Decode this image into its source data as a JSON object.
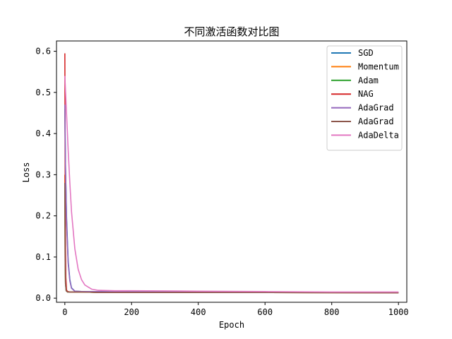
{
  "chart_data": {
    "type": "line",
    "title": "不同激活函数对比图",
    "xlabel": "Epoch",
    "ylabel": "Loss",
    "xlim": [
      -25,
      1025
    ],
    "ylim": [
      -0.01,
      0.625
    ],
    "xticks": [
      0,
      200,
      400,
      600,
      800,
      1000
    ],
    "yticks": [
      0.0,
      0.1,
      0.2,
      0.3,
      0.4,
      0.5,
      0.6
    ],
    "legend_position": "top-right",
    "grid": false,
    "series": [
      {
        "name": "SGD",
        "color": "#1f77b4",
        "x": [
          0,
          2,
          5,
          10,
          15,
          20,
          30,
          50,
          100,
          200,
          400,
          600,
          800,
          1000
        ],
        "y": [
          0.46,
          0.32,
          0.2,
          0.09,
          0.045,
          0.025,
          0.017,
          0.016,
          0.016,
          0.015,
          0.015,
          0.014,
          0.014,
          0.014
        ]
      },
      {
        "name": "Momentum",
        "color": "#ff7f0e",
        "x": [
          0,
          1,
          2,
          4,
          8,
          15,
          50,
          100,
          400,
          1000
        ],
        "y": [
          0.3,
          0.1,
          0.04,
          0.02,
          0.016,
          0.015,
          0.015,
          0.014,
          0.014,
          0.013
        ]
      },
      {
        "name": "Adam",
        "color": "#2ca02c",
        "x": [
          0,
          1,
          2,
          4,
          8,
          15,
          50,
          100,
          400,
          1000
        ],
        "y": [
          0.27,
          0.09,
          0.035,
          0.018,
          0.015,
          0.015,
          0.015,
          0.014,
          0.014,
          0.013
        ]
      },
      {
        "name": "NAG",
        "color": "#d62728",
        "x": [
          0,
          1,
          2,
          3,
          5,
          8,
          15,
          50,
          100,
          400,
          1000
        ],
        "y": [
          0.595,
          0.3,
          0.12,
          0.05,
          0.02,
          0.016,
          0.015,
          0.015,
          0.014,
          0.014,
          0.013
        ]
      },
      {
        "name": "AdaGrad",
        "color": "#9467bd",
        "x": [
          0,
          2,
          5,
          10,
          15,
          20,
          30,
          50,
          100,
          200,
          400,
          600,
          800,
          1000
        ],
        "y": [
          0.47,
          0.32,
          0.19,
          0.085,
          0.042,
          0.024,
          0.017,
          0.016,
          0.016,
          0.015,
          0.015,
          0.014,
          0.014,
          0.014
        ]
      },
      {
        "name": "AdaGrad",
        "color": "#8c564b",
        "x": [
          0,
          1,
          2,
          4,
          8,
          15,
          50,
          100,
          400,
          1000
        ],
        "y": [
          0.28,
          0.09,
          0.035,
          0.018,
          0.015,
          0.015,
          0.015,
          0.014,
          0.014,
          0.013
        ]
      },
      {
        "name": "AdaDelta",
        "color": "#e377c2",
        "x": [
          0,
          5,
          10,
          15,
          20,
          30,
          40,
          50,
          60,
          80,
          100,
          150,
          200,
          400,
          600,
          800,
          1000
        ],
        "y": [
          0.54,
          0.45,
          0.36,
          0.28,
          0.21,
          0.12,
          0.07,
          0.045,
          0.032,
          0.022,
          0.019,
          0.018,
          0.018,
          0.017,
          0.016,
          0.015,
          0.015
        ]
      }
    ]
  }
}
